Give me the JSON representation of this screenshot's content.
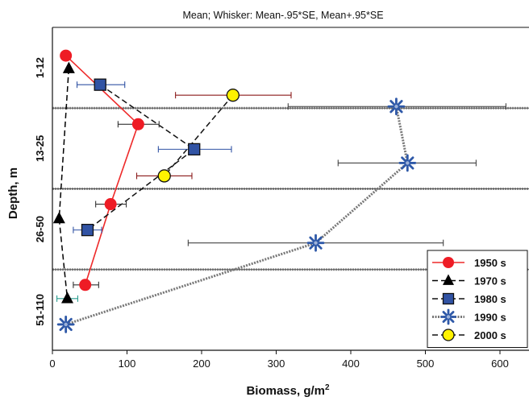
{
  "chart_data": {
    "type": "line",
    "title": "Mean;  Whisker: Mean-.95*SE, Mean+.95*SE",
    "xlabel": "Biomass, g/m",
    "xlabel_superscript": "2",
    "ylabel": "Depth, m",
    "xlim": [
      0,
      640
    ],
    "x_ticks": [
      0,
      100,
      200,
      300,
      400,
      500,
      600
    ],
    "categories": [
      "1-12",
      "13-25",
      "26-50",
      "51-110"
    ],
    "legend_position": "bottom-right",
    "grid": false,
    "series": [
      {
        "name": "1950 s",
        "marker": "circle",
        "color": "#ee1c25",
        "line_color": "#ee2a2a",
        "line_style": "solid",
        "error_color": "#333333",
        "points": [
          {
            "x": 18,
            "y_level": 0.35,
            "err_low": null,
            "err_high": null
          },
          {
            "x": 115,
            "y_level": 1.2,
            "err_low": 88,
            "err_high": 143
          },
          {
            "x": 78,
            "y_level": 2.19,
            "err_low": 58,
            "err_high": 99
          },
          {
            "x": 44,
            "y_level": 3.19,
            "err_low": 28,
            "err_high": 62
          }
        ]
      },
      {
        "name": "1970 s",
        "marker": "triangle",
        "color": "#000000",
        "line_color": "#000000",
        "line_style": "dashed",
        "error_color": "#2a9d8f",
        "points": [
          {
            "x": 22,
            "y_level": 0.51,
            "err_low": null,
            "err_high": null
          },
          {
            "x": 9,
            "y_level": 2.37,
            "err_low": null,
            "err_high": null
          },
          {
            "x": 20,
            "y_level": 3.36,
            "err_low": 6,
            "err_high": 34
          }
        ]
      },
      {
        "name": "1980 s",
        "marker": "square",
        "color": "#3153a4",
        "line_color": "#111111",
        "line_style": "dashed",
        "error_color": "#3153a4",
        "points": [
          {
            "x": 64,
            "y_level": 0.71,
            "err_low": 33,
            "err_high": 97
          },
          {
            "x": 190,
            "y_level": 1.51,
            "err_low": 142,
            "err_high": 240
          },
          {
            "x": 47,
            "y_level": 2.51,
            "err_low": 28,
            "err_high": 66
          }
        ]
      },
      {
        "name": "1990 s",
        "marker": "star",
        "color": "#2f59a8",
        "line_color": "#777777",
        "line_style": "dotted",
        "error_color": "#444444",
        "points": [
          {
            "x": 461,
            "y_level": 0.98,
            "err_low": 316,
            "err_high": 608
          },
          {
            "x": 476,
            "y_level": 1.68,
            "err_low": 383,
            "err_high": 568
          },
          {
            "x": 353,
            "y_level": 2.67,
            "err_low": 182,
            "err_high": 524
          },
          {
            "x": 18,
            "y_level": 3.68,
            "err_low": null,
            "err_high": null
          }
        ]
      },
      {
        "name": "2000 s",
        "marker": "circle",
        "color": "#fff200",
        "line_color": "#111111",
        "line_style": "dashed",
        "error_color": "#8b1a1a",
        "points": [
          {
            "x": 242,
            "y_level": 0.84,
            "err_low": 165,
            "err_high": 320
          },
          {
            "x": 150,
            "y_level": 1.84,
            "err_low": 113,
            "err_high": 187
          }
        ]
      }
    ]
  }
}
